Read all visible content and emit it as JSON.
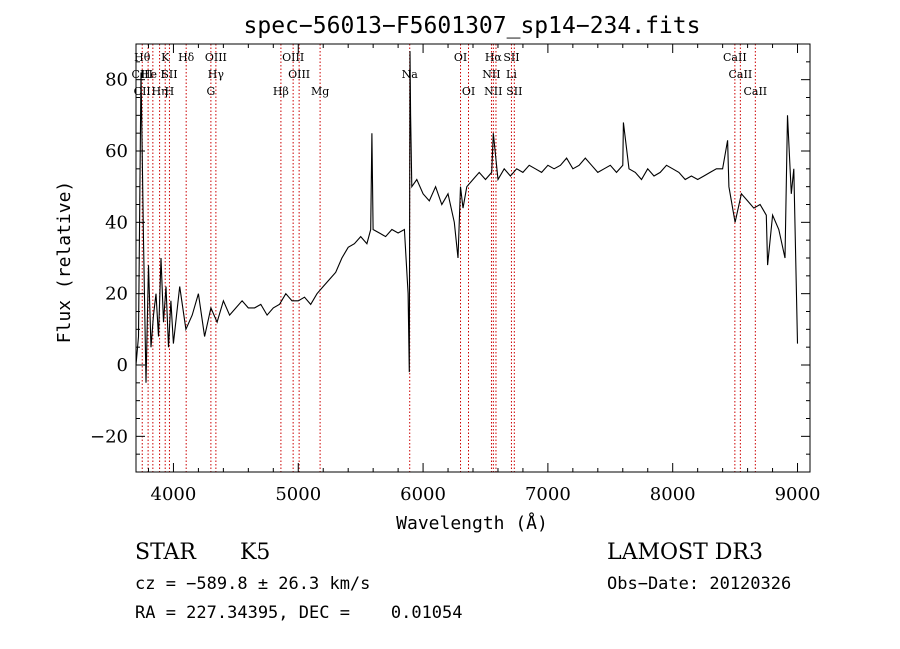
{
  "chart_data": {
    "type": "line",
    "title": "spec−56013−F5601307_sp14−234.fits",
    "xlabel": "Wavelength (Å)",
    "ylabel": "Flux (relative)",
    "xlim": [
      3700,
      9100
    ],
    "ylim": [
      -30,
      90
    ],
    "xticks": [
      4000,
      5000,
      6000,
      7000,
      8000,
      9000
    ],
    "yticks": [
      -20,
      0,
      20,
      40,
      60,
      80
    ],
    "ytick_labels": [
      "−20",
      "0",
      "20",
      "40",
      "60",
      "80"
    ],
    "grid": false,
    "line_color": "#000000",
    "marker_color": "#cc0000",
    "series": [
      {
        "x": [
          3700,
          3720,
          3740,
          3760,
          3780,
          3800,
          3820,
          3840,
          3860,
          3880,
          3900,
          3920,
          3940,
          3960,
          3980,
          4000,
          4050,
          4100,
          4150,
          4200,
          4250,
          4300,
          4350,
          4400,
          4450,
          4500,
          4550,
          4600,
          4650,
          4700,
          4750,
          4800,
          4850,
          4900,
          4950,
          5000,
          5050,
          5100,
          5150,
          5200,
          5250,
          5300,
          5350,
          5400,
          5450,
          5500,
          5550,
          5580,
          5590,
          5600,
          5650,
          5700,
          5750,
          5800,
          5850,
          5880,
          5890,
          5895,
          5900,
          5910,
          5950,
          6000,
          6050,
          6100,
          6150,
          6200,
          6250,
          6280,
          6300,
          6320,
          6350,
          6400,
          6450,
          6500,
          6550,
          6563,
          6600,
          6650,
          6700,
          6750,
          6800,
          6850,
          6900,
          6950,
          7000,
          7050,
          7100,
          7150,
          7200,
          7250,
          7300,
          7350,
          7400,
          7450,
          7500,
          7550,
          7600,
          7605,
          7650,
          7700,
          7750,
          7800,
          7850,
          7900,
          7950,
          8000,
          8050,
          8100,
          8150,
          8200,
          8250,
          8300,
          8350,
          8400,
          8440,
          8450,
          8500,
          8550,
          8600,
          8650,
          8700,
          8750,
          8760,
          8800,
          8850,
          8900,
          8920,
          8950,
          8970,
          8990,
          9000
        ],
        "y": [
          0,
          8,
          82,
          35,
          -5,
          28,
          5,
          14,
          20,
          8,
          30,
          12,
          22,
          5,
          18,
          6,
          22,
          10,
          14,
          20,
          8,
          16,
          12,
          18,
          14,
          16,
          18,
          16,
          16,
          17,
          14,
          16,
          17,
          20,
          18,
          18,
          19,
          17,
          20,
          22,
          24,
          26,
          30,
          33,
          34,
          36,
          34,
          38,
          65,
          38,
          37,
          36,
          38,
          37,
          38,
          20,
          -2,
          88,
          70,
          50,
          52,
          48,
          46,
          50,
          45,
          48,
          40,
          30,
          50,
          44,
          50,
          52,
          54,
          52,
          54,
          65,
          52,
          55,
          53,
          55,
          54,
          56,
          55,
          54,
          56,
          55,
          56,
          58,
          55,
          56,
          58,
          56,
          54,
          55,
          56,
          54,
          56,
          68,
          55,
          54,
          52,
          55,
          53,
          54,
          56,
          55,
          54,
          52,
          53,
          52,
          53,
          54,
          55,
          55,
          63,
          50,
          40,
          48,
          46,
          44,
          45,
          42,
          28,
          42,
          38,
          30,
          70,
          48,
          55,
          22,
          6
        ]
      }
    ],
    "lines": [
      {
        "w": 3750,
        "labels": [
          "Hθ",
          "CIII",
          "CII"
        ]
      },
      {
        "w": 3797,
        "labels": [
          "",
          "",
          ""
        ]
      },
      {
        "w": 3835,
        "labels": [
          "",
          "He I",
          ""
        ]
      },
      {
        "w": 3889,
        "labels": [
          "",
          "",
          "Hη"
        ]
      },
      {
        "w": 3934,
        "labels": [
          "K",
          "",
          ""
        ]
      },
      {
        "w": 3968,
        "labels": [
          "",
          "SII",
          "H"
        ]
      },
      {
        "w": 4102,
        "labels": [
          "Hδ",
          "",
          ""
        ]
      },
      {
        "w": 4300,
        "labels": [
          "",
          "",
          "G"
        ]
      },
      {
        "w": 4340,
        "labels": [
          "OIII",
          "Hγ",
          ""
        ]
      },
      {
        "w": 4861,
        "labels": [
          "",
          "",
          "Hβ"
        ]
      },
      {
        "w": 4959,
        "labels": [
          "OIII",
          "",
          ""
        ]
      },
      {
        "w": 5007,
        "labels": [
          "",
          "OIII",
          ""
        ]
      },
      {
        "w": 5175,
        "labels": [
          "",
          "",
          "Mg"
        ]
      },
      {
        "w": 5893,
        "labels": [
          "",
          "Na",
          ""
        ]
      },
      {
        "w": 6300,
        "labels": [
          "OI",
          "",
          ""
        ]
      },
      {
        "w": 6364,
        "labels": [
          "",
          "",
          "OI"
        ]
      },
      {
        "w": 6548,
        "labels": [
          "",
          "NII",
          ""
        ]
      },
      {
        "w": 6563,
        "labels": [
          "Hα",
          "",
          "NII"
        ]
      },
      {
        "w": 6584,
        "labels": [
          "",
          "",
          ""
        ]
      },
      {
        "w": 6708,
        "labels": [
          "SII",
          "Li",
          ""
        ]
      },
      {
        "w": 6731,
        "labels": [
          "",
          "",
          "SII"
        ]
      },
      {
        "w": 8498,
        "labels": [
          "CaII",
          "",
          ""
        ]
      },
      {
        "w": 8542,
        "labels": [
          "",
          "CaII",
          ""
        ]
      },
      {
        "w": 8662,
        "labels": [
          "",
          "",
          "CaII"
        ]
      }
    ]
  },
  "info": {
    "class": "STAR",
    "subclass": "K5",
    "survey": "LAMOST DR3",
    "cz": "cz = −589.8 ± 26.3 km/s",
    "obsdate": "Obs−Date: 20120326",
    "radec": "RA = 227.34395, DEC =    0.01054"
  }
}
